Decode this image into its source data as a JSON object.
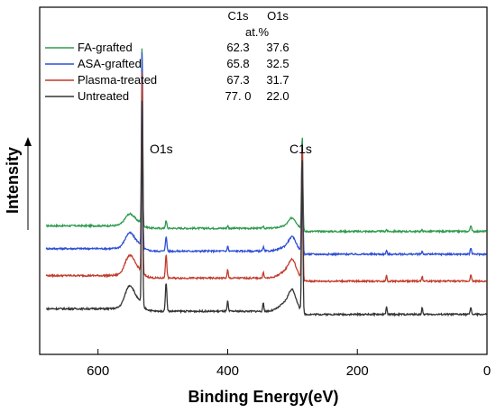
{
  "chart_data": {
    "type": "line",
    "title": "",
    "xlabel": "Binding Energy(eV)",
    "ylabel": "Intensity",
    "xlim": [
      690,
      0
    ],
    "x_reversed": true,
    "x_ticks": [
      {
        "value": 600,
        "label": "600"
      },
      {
        "value": 400,
        "label": "400"
      },
      {
        "value": 200,
        "label": "200"
      },
      {
        "value": 0,
        "label": "0"
      }
    ],
    "y_tick_labels": false,
    "grid": false,
    "legend_placement": "top-left",
    "peak_labels": [
      {
        "text": "O1s",
        "at_x": 532
      },
      {
        "text": "C1s",
        "at_x": 285
      }
    ],
    "composition_table": {
      "columns": [
        "C1s",
        "O1s"
      ],
      "unit": "at.%",
      "rows": [
        {
          "name": "FA-grafted",
          "values": [
            "62.3",
            "37.6"
          ]
        },
        {
          "name": "ASA-grafted",
          "values": [
            "65.8",
            "32.5"
          ]
        },
        {
          "name": "Plasma-treated",
          "values": [
            "67.3",
            "31.7"
          ]
        },
        {
          "name": "Untreated",
          "values": [
            "77. 0",
            "22.0"
          ]
        }
      ]
    },
    "series": [
      {
        "name": "FA-grafted",
        "color": "#2e9a4e",
        "baseline": 0.62,
        "o1s_height": 0.95,
        "c1s_height": 0.62,
        "minor_scale": 0.25
      },
      {
        "name": "ASA-grafted",
        "color": "#2e4fd6",
        "baseline": 0.51,
        "o1s_height": 1.05,
        "c1s_height": 0.72,
        "minor_scale": 0.5
      },
      {
        "name": "Plasma-treated",
        "color": "#c23b2a",
        "baseline": 0.38,
        "o1s_height": 1.08,
        "c1s_height": 0.9,
        "minor_scale": 0.8
      },
      {
        "name": "Untreated",
        "color": "#333333",
        "baseline": 0.22,
        "o1s_height": 1.1,
        "c1s_height": 1.02,
        "minor_scale": 1.0
      }
    ]
  }
}
